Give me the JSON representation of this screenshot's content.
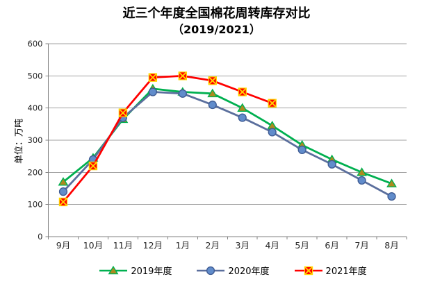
{
  "chart_data": {
    "type": "line",
    "title": "近三个年度全国棉花周转库存对比",
    "subtitle": "（2019/2021）",
    "ylabel": "单位：万吨",
    "xlabel": "",
    "ylim": [
      0,
      600
    ],
    "yticks": [
      0,
      100,
      200,
      300,
      400,
      500,
      600
    ],
    "grid": true,
    "legend_position": "bottom",
    "categories": [
      "9月",
      "10月",
      "11月",
      "12月",
      "1月",
      "2月",
      "3月",
      "4月",
      "5月",
      "6月",
      "7月",
      "8月"
    ],
    "series": [
      {
        "name": "2019年度",
        "marker": "triangle",
        "line_color": "#00B050",
        "marker_fill": "#AD8A1E",
        "marker_stroke": "#00B050",
        "values": [
          170,
          245,
          365,
          460,
          450,
          445,
          400,
          345,
          285,
          240,
          200,
          165
        ]
      },
      {
        "name": "2020年度",
        "marker": "circle",
        "line_color": "#5B6F9D",
        "marker_fill": "#618CCB",
        "marker_stroke": "#3F5C94",
        "values": [
          140,
          240,
          370,
          450,
          445,
          410,
          370,
          325,
          270,
          225,
          175,
          125
        ]
      },
      {
        "name": "2021年度",
        "marker": "square-x",
        "line_color": "#FF0000",
        "marker_fill": "#FF0000",
        "marker_stroke": "#FFD700",
        "values": [
          108,
          220,
          385,
          495,
          500,
          485,
          450,
          415,
          null,
          null,
          null,
          null
        ]
      }
    ],
    "axis_color": "#808080",
    "gridline_color": "#A0A0A0",
    "tick_label_color": "#262626"
  }
}
